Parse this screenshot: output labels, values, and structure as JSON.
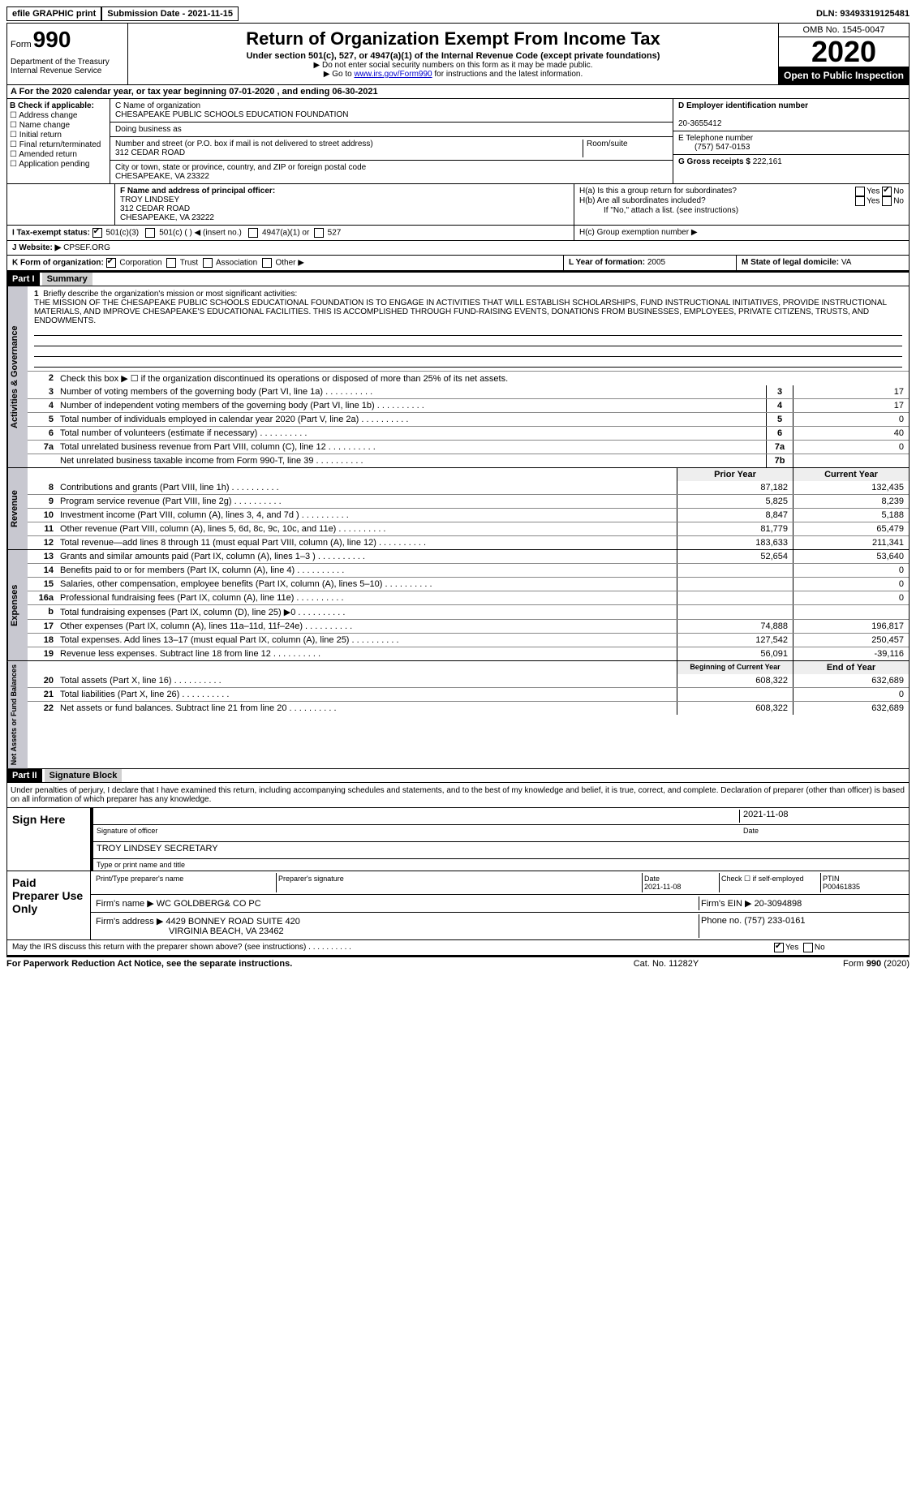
{
  "topbar": {
    "efile": "efile GRAPHIC print",
    "submission": "Submission Date - 2021-11-15",
    "dln": "DLN: 93493319125481"
  },
  "header": {
    "form_prefix": "Form",
    "form_no": "990",
    "dept": "Department of the Treasury\nInternal Revenue Service",
    "title": "Return of Organization Exempt From Income Tax",
    "sub": "Under section 501(c), 527, or 4947(a)(1) of the Internal Revenue Code (except private foundations)",
    "arrow1": "▶ Do not enter social security numbers on this form as it may be made public.",
    "arrow2_pre": "▶ Go to ",
    "arrow2_link": "www.irs.gov/Form990",
    "arrow2_post": " for instructions and the latest information.",
    "omb": "OMB No. 1545-0047",
    "year": "2020",
    "open": "Open to Public Inspection"
  },
  "row_a": "A For the 2020 calendar year, or tax year beginning 07-01-2020   , and ending 06-30-2021",
  "col_b": {
    "hdr": "B Check if applicable:",
    "items": [
      "Address change",
      "Name change",
      "Initial return",
      "Final return/terminated",
      "Amended return",
      "Application pending"
    ]
  },
  "col_c": {
    "name_lbl": "C Name of organization",
    "name": "CHESAPEAKE PUBLIC SCHOOLS EDUCATION FOUNDATION",
    "dba_lbl": "Doing business as",
    "dba": "",
    "street_lbl": "Number and street (or P.O. box if mail is not delivered to street address)",
    "street": "312 CEDAR ROAD",
    "room_lbl": "Room/suite",
    "city_lbl": "City or town, state or province, country, and ZIP or foreign postal code",
    "city": "CHESAPEAKE, VA  23322"
  },
  "col_de": {
    "d_lbl": "D Employer identification number",
    "d_val": "20-3655412",
    "e_lbl": "E Telephone number",
    "e_val": "(757) 547-0153",
    "g_lbl": "G Gross receipts $",
    "g_val": "222,161"
  },
  "row_f": {
    "lbl": "F Name and address of principal officer:",
    "name": "TROY LINDSEY",
    "street": "312 CEDAR ROAD",
    "city": "CHESAPEAKE, VA  23222"
  },
  "row_h": {
    "ha": "H(a)  Is this a group return for subordinates?",
    "hb": "H(b)  Are all subordinates included?",
    "hnote": "If \"No,\" attach a list. (see instructions)",
    "hc": "H(c)  Group exemption number ▶",
    "yes": "Yes",
    "no": "No"
  },
  "row_i": {
    "lbl": "I  Tax-exempt status:",
    "o1": "501(c)(3)",
    "o2": "501(c) (  ) ◀ (insert no.)",
    "o3": "4947(a)(1) or",
    "o4": "527"
  },
  "row_j": {
    "lbl": "J  Website: ▶",
    "val": "CPSEF.ORG"
  },
  "row_k": {
    "lbl": "K Form of organization:",
    "o1": "Corporation",
    "o2": "Trust",
    "o3": "Association",
    "o4": "Other ▶",
    "l_lbl": "L Year of formation:",
    "l_val": "2005",
    "m_lbl": "M State of legal domicile:",
    "m_val": "VA"
  },
  "part1": {
    "hdr": "Part I",
    "title": "Summary",
    "q1_lbl": "Briefly describe the organization's mission or most significant activities:",
    "q1_txt": "THE MISSION OF THE CHESAPEAKE PUBLIC SCHOOLS EDUCATIONAL FOUNDATION IS TO ENGAGE IN ACTIVITIES THAT WILL ESTABLISH SCHOLARSHIPS, FUND INSTRUCTIONAL INITIATIVES, PROVIDE INSTRUCTIONAL MATERIALS, AND IMPROVE CHESAPEAKE'S EDUCATIONAL FACILITIES. THIS IS ACCOMPLISHED THROUGH FUND-RAISING EVENTS, DONATIONS FROM BUSINESSES, EMPLOYEES, PRIVATE CITIZENS, TRUSTS, AND ENDOWMENTS.",
    "q2": "Check this box ▶ ☐  if the organization discontinued its operations or disposed of more than 25% of its net assets.",
    "gov": [
      {
        "n": "3",
        "d": "Number of voting members of the governing body (Part VI, line 1a)",
        "b": "3",
        "v": "17"
      },
      {
        "n": "4",
        "d": "Number of independent voting members of the governing body (Part VI, line 1b)",
        "b": "4",
        "v": "17"
      },
      {
        "n": "5",
        "d": "Total number of individuals employed in calendar year 2020 (Part V, line 2a)",
        "b": "5",
        "v": "0"
      },
      {
        "n": "6",
        "d": "Total number of volunteers (estimate if necessary)",
        "b": "6",
        "v": "40"
      },
      {
        "n": "7a",
        "d": "Total unrelated business revenue from Part VIII, column (C), line 12",
        "b": "7a",
        "v": "0"
      },
      {
        "n": "",
        "d": "Net unrelated business taxable income from Form 990-T, line 39",
        "b": "7b",
        "v": ""
      }
    ],
    "col_prior": "Prior Year",
    "col_curr": "Current Year",
    "rev": [
      {
        "n": "8",
        "d": "Contributions and grants (Part VIII, line 1h)",
        "p": "87,182",
        "c": "132,435"
      },
      {
        "n": "9",
        "d": "Program service revenue (Part VIII, line 2g)",
        "p": "5,825",
        "c": "8,239"
      },
      {
        "n": "10",
        "d": "Investment income (Part VIII, column (A), lines 3, 4, and 7d )",
        "p": "8,847",
        "c": "5,188"
      },
      {
        "n": "11",
        "d": "Other revenue (Part VIII, column (A), lines 5, 6d, 8c, 9c, 10c, and 11e)",
        "p": "81,779",
        "c": "65,479"
      },
      {
        "n": "12",
        "d": "Total revenue—add lines 8 through 11 (must equal Part VIII, column (A), line 12)",
        "p": "183,633",
        "c": "211,341"
      }
    ],
    "exp": [
      {
        "n": "13",
        "d": "Grants and similar amounts paid (Part IX, column (A), lines 1–3 )",
        "p": "52,654",
        "c": "53,640"
      },
      {
        "n": "14",
        "d": "Benefits paid to or for members (Part IX, column (A), line 4)",
        "p": "",
        "c": "0"
      },
      {
        "n": "15",
        "d": "Salaries, other compensation, employee benefits (Part IX, column (A), lines 5–10)",
        "p": "",
        "c": "0"
      },
      {
        "n": "16a",
        "d": "Professional fundraising fees (Part IX, column (A), line 11e)",
        "p": "",
        "c": "0"
      },
      {
        "n": "b",
        "d": "Total fundraising expenses (Part IX, column (D), line 25) ▶0",
        "p": "",
        "c": ""
      },
      {
        "n": "17",
        "d": "Other expenses (Part IX, column (A), lines 11a–11d, 11f–24e)",
        "p": "74,888",
        "c": "196,817"
      },
      {
        "n": "18",
        "d": "Total expenses. Add lines 13–17 (must equal Part IX, column (A), line 25)",
        "p": "127,542",
        "c": "250,457"
      },
      {
        "n": "19",
        "d": "Revenue less expenses. Subtract line 18 from line 12",
        "p": "56,091",
        "c": "-39,116"
      }
    ],
    "col_beg": "Beginning of Current Year",
    "col_end": "End of Year",
    "net": [
      {
        "n": "20",
        "d": "Total assets (Part X, line 16)",
        "p": "608,322",
        "c": "632,689"
      },
      {
        "n": "21",
        "d": "Total liabilities (Part X, line 26)",
        "p": "",
        "c": "0"
      },
      {
        "n": "22",
        "d": "Net assets or fund balances. Subtract line 21 from line 20",
        "p": "608,322",
        "c": "632,689"
      }
    ],
    "vlabels": {
      "gov": "Activities & Governance",
      "rev": "Revenue",
      "exp": "Expenses",
      "net": "Net Assets or Fund Balances"
    }
  },
  "part2": {
    "hdr": "Part II",
    "title": "Signature Block",
    "decl": "Under penalties of perjury, I declare that I have examined this return, including accompanying schedules and statements, and to the best of my knowledge and belief, it is true, correct, and complete. Declaration of preparer (other than officer) is based on all information of which preparer has any knowledge.",
    "sign_here": "Sign Here",
    "sig_officer": "Signature of officer",
    "sig_date": "2021-11-08",
    "date_lbl": "Date",
    "officer_name": "TROY LINDSEY  SECRETARY",
    "type_name": "Type or print name and title",
    "paid": "Paid Preparer Use Only",
    "prep_name_lbl": "Print/Type preparer's name",
    "prep_sig_lbl": "Preparer's signature",
    "prep_date": "2021-11-08",
    "check_self": "Check ☐ if self-employed",
    "ptin_lbl": "PTIN",
    "ptin": "P00461835",
    "firm_name_lbl": "Firm's name    ▶",
    "firm_name": "WC GOLDBERG& CO PC",
    "firm_ein_lbl": "Firm's EIN ▶",
    "firm_ein": "20-3094898",
    "firm_addr_lbl": "Firm's address ▶",
    "firm_addr": "4429 BONNEY ROAD SUITE 420",
    "firm_city": "VIRGINIA BEACH, VA  23462",
    "phone_lbl": "Phone no.",
    "phone": "(757) 233-0161",
    "discuss": "May the IRS discuss this return with the preparer shown above? (see instructions)",
    "yes": "Yes",
    "no": "No"
  },
  "footer": {
    "l": "For Paperwork Reduction Act Notice, see the separate instructions.",
    "m": "Cat. No. 11282Y",
    "r": "Form 990 (2020)"
  }
}
